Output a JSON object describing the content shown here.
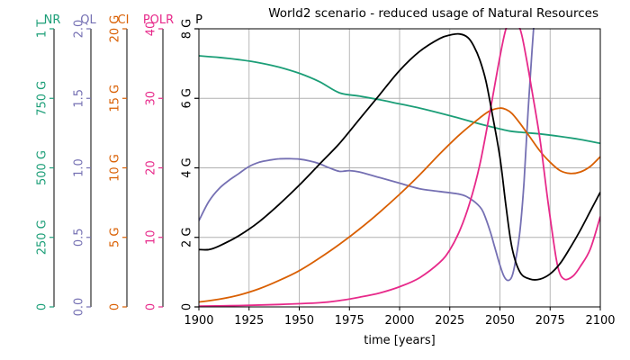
{
  "chart_data": {
    "type": "line",
    "title": "World2 scenario - reduced usage of Natural Resources",
    "xlabel": "time [years]",
    "xlim": [
      1900,
      2100
    ],
    "x_ticks": [
      "1900",
      "1925",
      "1950",
      "1975",
      "2000",
      "2025",
      "2050",
      "2075",
      "2100"
    ],
    "grid": true,
    "axes": [
      {
        "id": "NR",
        "name": "NR",
        "color": "#1b9e77",
        "ylim": [
          0,
          1000
        ],
        "ticks": [
          {
            "v": 0,
            "label": "0"
          },
          {
            "v": 250,
            "label": "250 G"
          },
          {
            "v": 500,
            "label": "500 G"
          },
          {
            "v": 750,
            "label": "750 G"
          },
          {
            "v": 1000,
            "label": "1 T"
          }
        ]
      },
      {
        "id": "QL",
        "name": "QL",
        "color": "#7570b3",
        "ylim": [
          0,
          2
        ],
        "ticks": [
          {
            "v": 0,
            "label": "0.0"
          },
          {
            "v": 0.5,
            "label": "0.5"
          },
          {
            "v": 1,
            "label": "1.0"
          },
          {
            "v": 1.5,
            "label": "1.5"
          },
          {
            "v": 2,
            "label": "2.0"
          }
        ]
      },
      {
        "id": "CI",
        "name": "CI",
        "color": "#d95f02",
        "ylim": [
          0,
          20
        ],
        "ticks": [
          {
            "v": 0,
            "label": "0"
          },
          {
            "v": 5,
            "label": "5 G"
          },
          {
            "v": 10,
            "label": "10 G"
          },
          {
            "v": 15,
            "label": "15 G"
          },
          {
            "v": 20,
            "label": "20 G"
          }
        ]
      },
      {
        "id": "POLR",
        "name": "POLR",
        "color": "#e7298a",
        "ylim": [
          0,
          40
        ],
        "ticks": [
          {
            "v": 0,
            "label": "0"
          },
          {
            "v": 10,
            "label": "10"
          },
          {
            "v": 20,
            "label": "20"
          },
          {
            "v": 30,
            "label": "30"
          },
          {
            "v": 40,
            "label": "40"
          }
        ]
      },
      {
        "id": "P",
        "name": "P",
        "color": "#000000",
        "ylim": [
          0,
          8
        ],
        "ticks": [
          {
            "v": 0,
            "label": "0"
          },
          {
            "v": 2,
            "label": "2 G"
          },
          {
            "v": 4,
            "label": "4 G"
          },
          {
            "v": 6,
            "label": "6 G"
          },
          {
            "v": 8,
            "label": "8 G"
          }
        ]
      }
    ],
    "series": [
      {
        "axis": "NR",
        "color": "#1b9e77",
        "x": [
          1900,
          1910,
          1920,
          1930,
          1940,
          1950,
          1960,
          1970,
          1980,
          1990,
          2000,
          2010,
          2020,
          2030,
          2040,
          2050,
          2055,
          2060,
          2070,
          2080,
          2090,
          2100
        ],
        "y": [
          903,
          897,
          889,
          878,
          862,
          840,
          810,
          770,
          758,
          745,
          730,
          715,
          697,
          678,
          658,
          640,
          632,
          628,
          622,
          613,
          602,
          588
        ]
      },
      {
        "axis": "QL",
        "color": "#7570b3",
        "x": [
          1900,
          1905,
          1910,
          1915,
          1920,
          1925,
          1930,
          1935,
          1940,
          1945,
          1950,
          1955,
          1960,
          1965,
          1970,
          1975,
          1980,
          1990,
          2000,
          2010,
          2020,
          2030,
          2035,
          2040,
          2042,
          2045,
          2047,
          2050,
          2052,
          2054,
          2056,
          2058,
          2060,
          2062,
          2064,
          2066,
          2067
        ],
        "y": [
          0.62,
          0.76,
          0.85,
          0.91,
          0.96,
          1.01,
          1.04,
          1.055,
          1.065,
          1.066,
          1.063,
          1.05,
          1.03,
          1.0,
          0.975,
          0.98,
          0.97,
          0.93,
          0.89,
          0.85,
          0.83,
          0.81,
          0.78,
          0.72,
          0.67,
          0.55,
          0.45,
          0.3,
          0.22,
          0.19,
          0.22,
          0.35,
          0.55,
          0.9,
          1.4,
          1.85,
          2.05
        ]
      },
      {
        "axis": "CI",
        "color": "#d95f02",
        "x": [
          1900,
          1910,
          1920,
          1930,
          1940,
          1950,
          1960,
          1970,
          1980,
          1990,
          2000,
          2010,
          2020,
          2030,
          2040,
          2045,
          2050,
          2053,
          2056,
          2060,
          2065,
          2070,
          2075,
          2080,
          2085,
          2090,
          2095,
          2100
        ],
        "y": [
          0.35,
          0.55,
          0.85,
          1.3,
          1.9,
          2.6,
          3.5,
          4.5,
          5.6,
          6.8,
          8.1,
          9.5,
          11.0,
          12.4,
          13.6,
          14.1,
          14.3,
          14.2,
          13.9,
          13.2,
          12.2,
          11.2,
          10.4,
          9.8,
          9.6,
          9.7,
          10.1,
          10.8
        ]
      },
      {
        "axis": "POLR",
        "color": "#e7298a",
        "x": [
          1900,
          1920,
          1940,
          1960,
          1970,
          1980,
          1990,
          2000,
          2010,
          2020,
          2025,
          2030,
          2035,
          2040,
          2045,
          2050,
          2053,
          2056,
          2060,
          2063,
          2066,
          2070,
          2074,
          2078,
          2080,
          2082,
          2084,
          2087,
          2090,
          2095,
          2100
        ],
        "y": [
          0.1,
          0.2,
          0.35,
          0.6,
          0.9,
          1.4,
          2.0,
          2.9,
          4.2,
          6.4,
          8.2,
          11.0,
          15.0,
          20.5,
          28.0,
          36.0,
          40.0,
          41.5,
          40.0,
          36.0,
          31.0,
          24.0,
          15.0,
          7.0,
          4.7,
          4.0,
          4.0,
          4.6,
          5.8,
          8.3,
          13.0
        ]
      },
      {
        "axis": "P",
        "color": "#000000",
        "x": [
          1900,
          1905,
          1910,
          1920,
          1930,
          1940,
          1950,
          1960,
          1970,
          1980,
          1990,
          2000,
          2010,
          2020,
          2025,
          2030,
          2034,
          2037,
          2040,
          2043,
          2046,
          2050,
          2053,
          2056,
          2060,
          2065,
          2070,
          2075,
          2080,
          2085,
          2090,
          2095,
          2100
        ],
        "y": [
          1.65,
          1.65,
          1.75,
          2.05,
          2.45,
          2.95,
          3.5,
          4.1,
          4.7,
          5.4,
          6.1,
          6.8,
          7.35,
          7.72,
          7.82,
          7.85,
          7.75,
          7.5,
          7.1,
          6.5,
          5.6,
          4.3,
          2.9,
          1.7,
          1.0,
          0.8,
          0.8,
          0.95,
          1.25,
          1.7,
          2.2,
          2.75,
          3.3
        ]
      }
    ]
  }
}
